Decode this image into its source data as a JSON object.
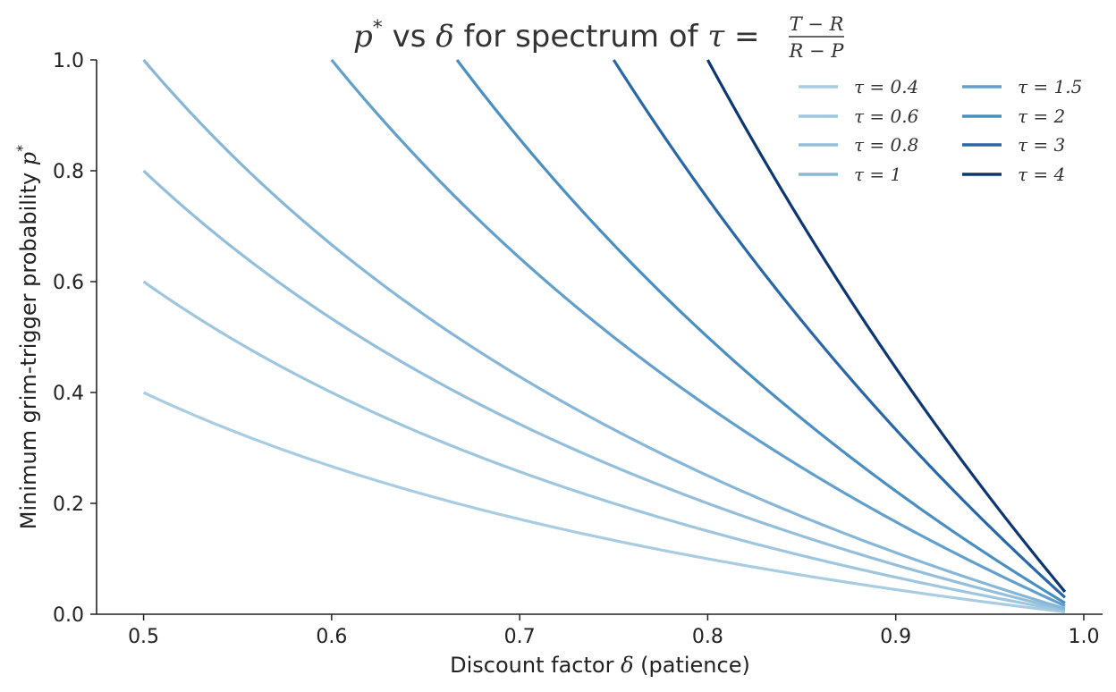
{
  "chart_data": {
    "type": "line",
    "title_parts": {
      "lhs": "p",
      "lhs_sup": "*",
      "middle": " vs ",
      "delta": "δ",
      "text": " for spectrum of ",
      "tau": "τ",
      "eq": " = ",
      "frac_num": "T − R",
      "frac_den": "R − P"
    },
    "xlabel_parts": {
      "text": "Discount factor ",
      "symbol": "δ",
      "suffix": " (patience)"
    },
    "ylabel_parts": {
      "text": "Minimum grim-trigger probability ",
      "symbol": "p",
      "sup": "*"
    },
    "xlim": [
      0.475,
      1.01
    ],
    "ylim": [
      0.0,
      1.0
    ],
    "xticks": [
      "0.5",
      "0.6",
      "0.7",
      "0.8",
      "0.9",
      "1.0"
    ],
    "yticks": [
      "0.0",
      "0.2",
      "0.4",
      "0.6",
      "0.8",
      "1.0"
    ],
    "grid": false,
    "legend_placement": "top-right",
    "legend_columns": 2,
    "x_range": [
      0.5,
      0.99
    ],
    "formula": "p* = tau * (1 - delta) / delta, shown where p* <= 1",
    "series": [
      {
        "name": "τ = 0.4",
        "tau": 0.4,
        "color": "#a8cde3"
      },
      {
        "name": "τ = 0.6",
        "tau": 0.6,
        "color": "#9ec6df"
      },
      {
        "name": "τ = 0.8",
        "tau": 0.8,
        "color": "#93bfdc"
      },
      {
        "name": "τ = 1",
        "tau": 1.0,
        "color": "#86b7d8"
      },
      {
        "name": "τ = 1.5",
        "tau": 1.5,
        "color": "#619fcc"
      },
      {
        "name": "τ = 2",
        "tau": 2.0,
        "color": "#4a8fc2"
      },
      {
        "name": "τ = 3",
        "tau": 3.0,
        "color": "#2867a8"
      },
      {
        "name": "τ = 4",
        "tau": 4.0,
        "color": "#0d3773"
      }
    ]
  }
}
